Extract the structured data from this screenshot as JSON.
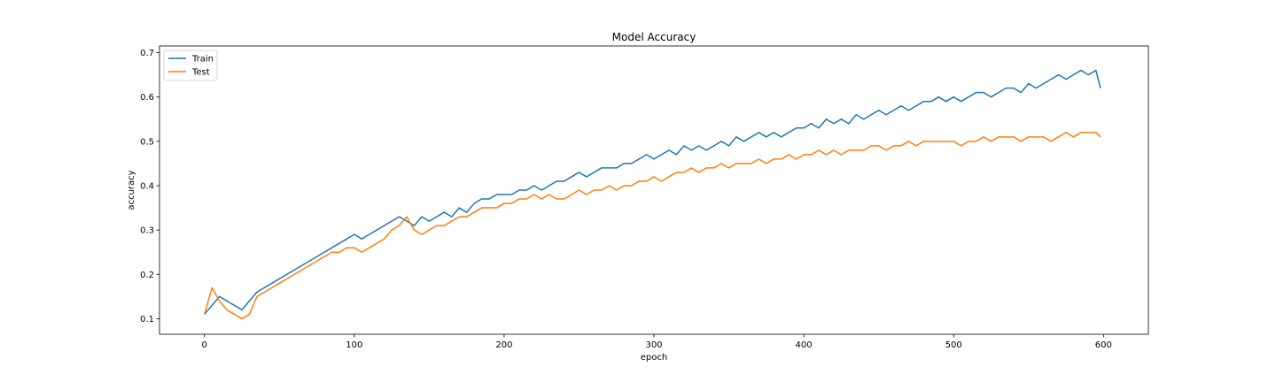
{
  "chart_data": {
    "type": "line",
    "title": "Model Accuracy",
    "xlabel": "epoch",
    "ylabel": "accuracy",
    "xlim": [
      -30,
      630
    ],
    "ylim": [
      0.065,
      0.715
    ],
    "xticks": [
      0,
      100,
      200,
      300,
      400,
      500,
      600
    ],
    "yticks": [
      0.1,
      0.2,
      0.3,
      0.4,
      0.5,
      0.6,
      0.7
    ],
    "grid": false,
    "legend_position": "upper-left",
    "series": [
      {
        "name": "Train",
        "color": "#1f77b4",
        "x": [
          0,
          5,
          10,
          15,
          20,
          25,
          30,
          35,
          40,
          45,
          50,
          55,
          60,
          65,
          70,
          75,
          80,
          85,
          90,
          95,
          100,
          105,
          110,
          115,
          120,
          125,
          130,
          135,
          140,
          145,
          150,
          155,
          160,
          165,
          170,
          175,
          180,
          185,
          190,
          195,
          200,
          205,
          210,
          215,
          220,
          225,
          230,
          235,
          240,
          245,
          250,
          255,
          260,
          265,
          270,
          275,
          280,
          285,
          290,
          295,
          300,
          305,
          310,
          315,
          320,
          325,
          330,
          335,
          340,
          345,
          350,
          355,
          360,
          365,
          370,
          375,
          380,
          385,
          390,
          395,
          400,
          405,
          410,
          415,
          420,
          425,
          430,
          435,
          440,
          445,
          450,
          455,
          460,
          465,
          470,
          475,
          480,
          485,
          490,
          495,
          500,
          505,
          510,
          515,
          520,
          525,
          530,
          535,
          540,
          545,
          550,
          555,
          560,
          565,
          570,
          575,
          580,
          585,
          590,
          595,
          598
        ],
        "y": [
          0.11,
          0.13,
          0.15,
          0.14,
          0.13,
          0.12,
          0.14,
          0.16,
          0.17,
          0.18,
          0.19,
          0.2,
          0.21,
          0.22,
          0.23,
          0.24,
          0.25,
          0.26,
          0.27,
          0.28,
          0.29,
          0.28,
          0.29,
          0.3,
          0.31,
          0.32,
          0.33,
          0.32,
          0.31,
          0.33,
          0.32,
          0.33,
          0.34,
          0.33,
          0.35,
          0.34,
          0.36,
          0.37,
          0.37,
          0.38,
          0.38,
          0.38,
          0.39,
          0.39,
          0.4,
          0.39,
          0.4,
          0.41,
          0.41,
          0.42,
          0.43,
          0.42,
          0.43,
          0.44,
          0.44,
          0.44,
          0.45,
          0.45,
          0.46,
          0.47,
          0.46,
          0.47,
          0.48,
          0.47,
          0.49,
          0.48,
          0.49,
          0.48,
          0.49,
          0.5,
          0.49,
          0.51,
          0.5,
          0.51,
          0.52,
          0.51,
          0.52,
          0.51,
          0.52,
          0.53,
          0.53,
          0.54,
          0.53,
          0.55,
          0.54,
          0.55,
          0.54,
          0.56,
          0.55,
          0.56,
          0.57,
          0.56,
          0.57,
          0.58,
          0.57,
          0.58,
          0.59,
          0.59,
          0.6,
          0.59,
          0.6,
          0.59,
          0.6,
          0.61,
          0.61,
          0.6,
          0.61,
          0.62,
          0.62,
          0.61,
          0.63,
          0.62,
          0.63,
          0.64,
          0.65,
          0.64,
          0.65,
          0.66,
          0.65,
          0.66,
          0.62
        ]
      },
      {
        "name": "Test",
        "color": "#ff7f0e",
        "x": [
          0,
          5,
          10,
          15,
          20,
          25,
          30,
          35,
          40,
          45,
          50,
          55,
          60,
          65,
          70,
          75,
          80,
          85,
          90,
          95,
          100,
          105,
          110,
          115,
          120,
          125,
          130,
          135,
          140,
          145,
          150,
          155,
          160,
          165,
          170,
          175,
          180,
          185,
          190,
          195,
          200,
          205,
          210,
          215,
          220,
          225,
          230,
          235,
          240,
          245,
          250,
          255,
          260,
          265,
          270,
          275,
          280,
          285,
          290,
          295,
          300,
          305,
          310,
          315,
          320,
          325,
          330,
          335,
          340,
          345,
          350,
          355,
          360,
          365,
          370,
          375,
          380,
          385,
          390,
          395,
          400,
          405,
          410,
          415,
          420,
          425,
          430,
          435,
          440,
          445,
          450,
          455,
          460,
          465,
          470,
          475,
          480,
          485,
          490,
          495,
          500,
          505,
          510,
          515,
          520,
          525,
          530,
          535,
          540,
          545,
          550,
          555,
          560,
          565,
          570,
          575,
          580,
          585,
          590,
          595,
          598
        ],
        "y": [
          0.11,
          0.17,
          0.14,
          0.12,
          0.11,
          0.1,
          0.11,
          0.15,
          0.16,
          0.17,
          0.18,
          0.19,
          0.2,
          0.21,
          0.22,
          0.23,
          0.24,
          0.25,
          0.25,
          0.26,
          0.26,
          0.25,
          0.26,
          0.27,
          0.28,
          0.3,
          0.31,
          0.33,
          0.3,
          0.29,
          0.3,
          0.31,
          0.31,
          0.32,
          0.33,
          0.33,
          0.34,
          0.35,
          0.35,
          0.35,
          0.36,
          0.36,
          0.37,
          0.37,
          0.38,
          0.37,
          0.38,
          0.37,
          0.37,
          0.38,
          0.39,
          0.38,
          0.39,
          0.39,
          0.4,
          0.39,
          0.4,
          0.4,
          0.41,
          0.41,
          0.42,
          0.41,
          0.42,
          0.43,
          0.43,
          0.44,
          0.43,
          0.44,
          0.44,
          0.45,
          0.44,
          0.45,
          0.45,
          0.45,
          0.46,
          0.45,
          0.46,
          0.46,
          0.47,
          0.46,
          0.47,
          0.47,
          0.48,
          0.47,
          0.48,
          0.47,
          0.48,
          0.48,
          0.48,
          0.49,
          0.49,
          0.48,
          0.49,
          0.49,
          0.5,
          0.49,
          0.5,
          0.5,
          0.5,
          0.5,
          0.5,
          0.49,
          0.5,
          0.5,
          0.51,
          0.5,
          0.51,
          0.51,
          0.51,
          0.5,
          0.51,
          0.51,
          0.51,
          0.5,
          0.51,
          0.52,
          0.51,
          0.52,
          0.52,
          0.52,
          0.51
        ]
      }
    ]
  }
}
